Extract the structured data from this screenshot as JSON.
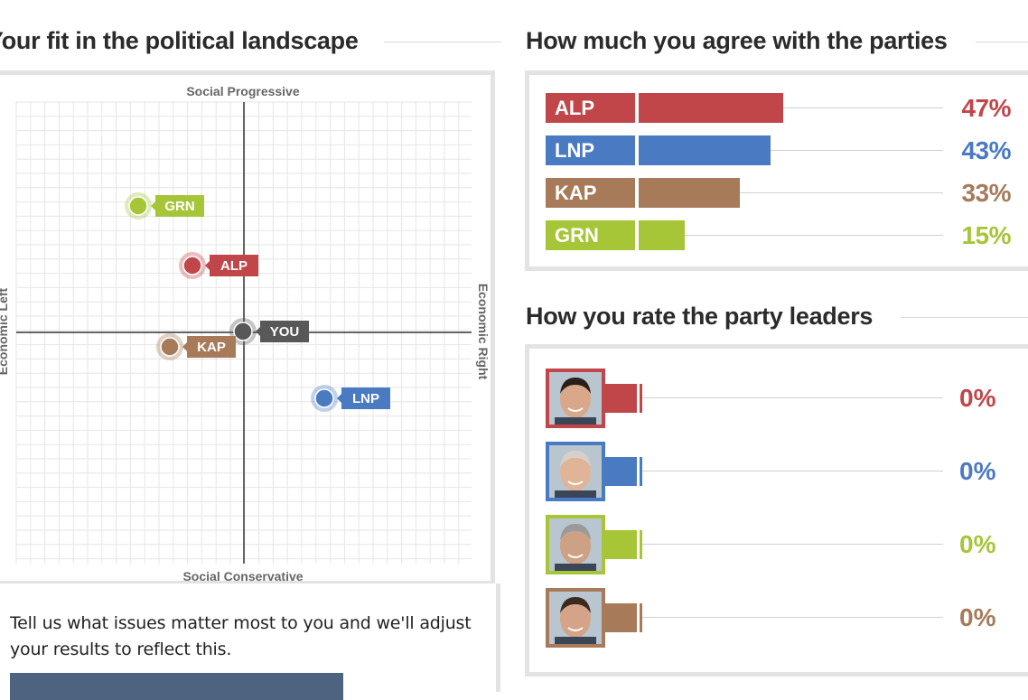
{
  "left": {
    "title": "Your fit in the political landscape",
    "axes": {
      "top": "Social Progressive",
      "bottom": "Social Conservative",
      "left": "Economic Left",
      "right": "Economic Right"
    },
    "points": [
      {
        "label": "GRN",
        "color": "#a6c638"
      },
      {
        "label": "ALP",
        "color": "#c1464a"
      },
      {
        "label": "YOU",
        "color": "#585858"
      },
      {
        "label": "KAP",
        "color": "#a77a5a"
      },
      {
        "label": "LNP",
        "color": "#4a7ac2"
      }
    ],
    "issues_text": "Tell us what issues matter most to you and we'll adjust your results to reflect this."
  },
  "parties": {
    "title": "How much you agree with the parties",
    "rows": [
      {
        "label": "ALP",
        "pct": "47%",
        "value": 47,
        "color": "#c1464a"
      },
      {
        "label": "LNP",
        "pct": "43%",
        "value": 43,
        "color": "#4a7ac2"
      },
      {
        "label": "KAP",
        "pct": "33%",
        "value": 33,
        "color": "#a77a5a"
      },
      {
        "label": "GRN",
        "pct": "15%",
        "value": 15,
        "color": "#a6c638"
      }
    ]
  },
  "leaders": {
    "title": "How you rate the party leaders",
    "rows": [
      {
        "pct": "0%",
        "color": "#c1464a"
      },
      {
        "pct": "0%",
        "color": "#4a7ac2"
      },
      {
        "pct": "0%",
        "color": "#a6c638"
      },
      {
        "pct": "0%",
        "color": "#a77a5a"
      }
    ]
  }
}
